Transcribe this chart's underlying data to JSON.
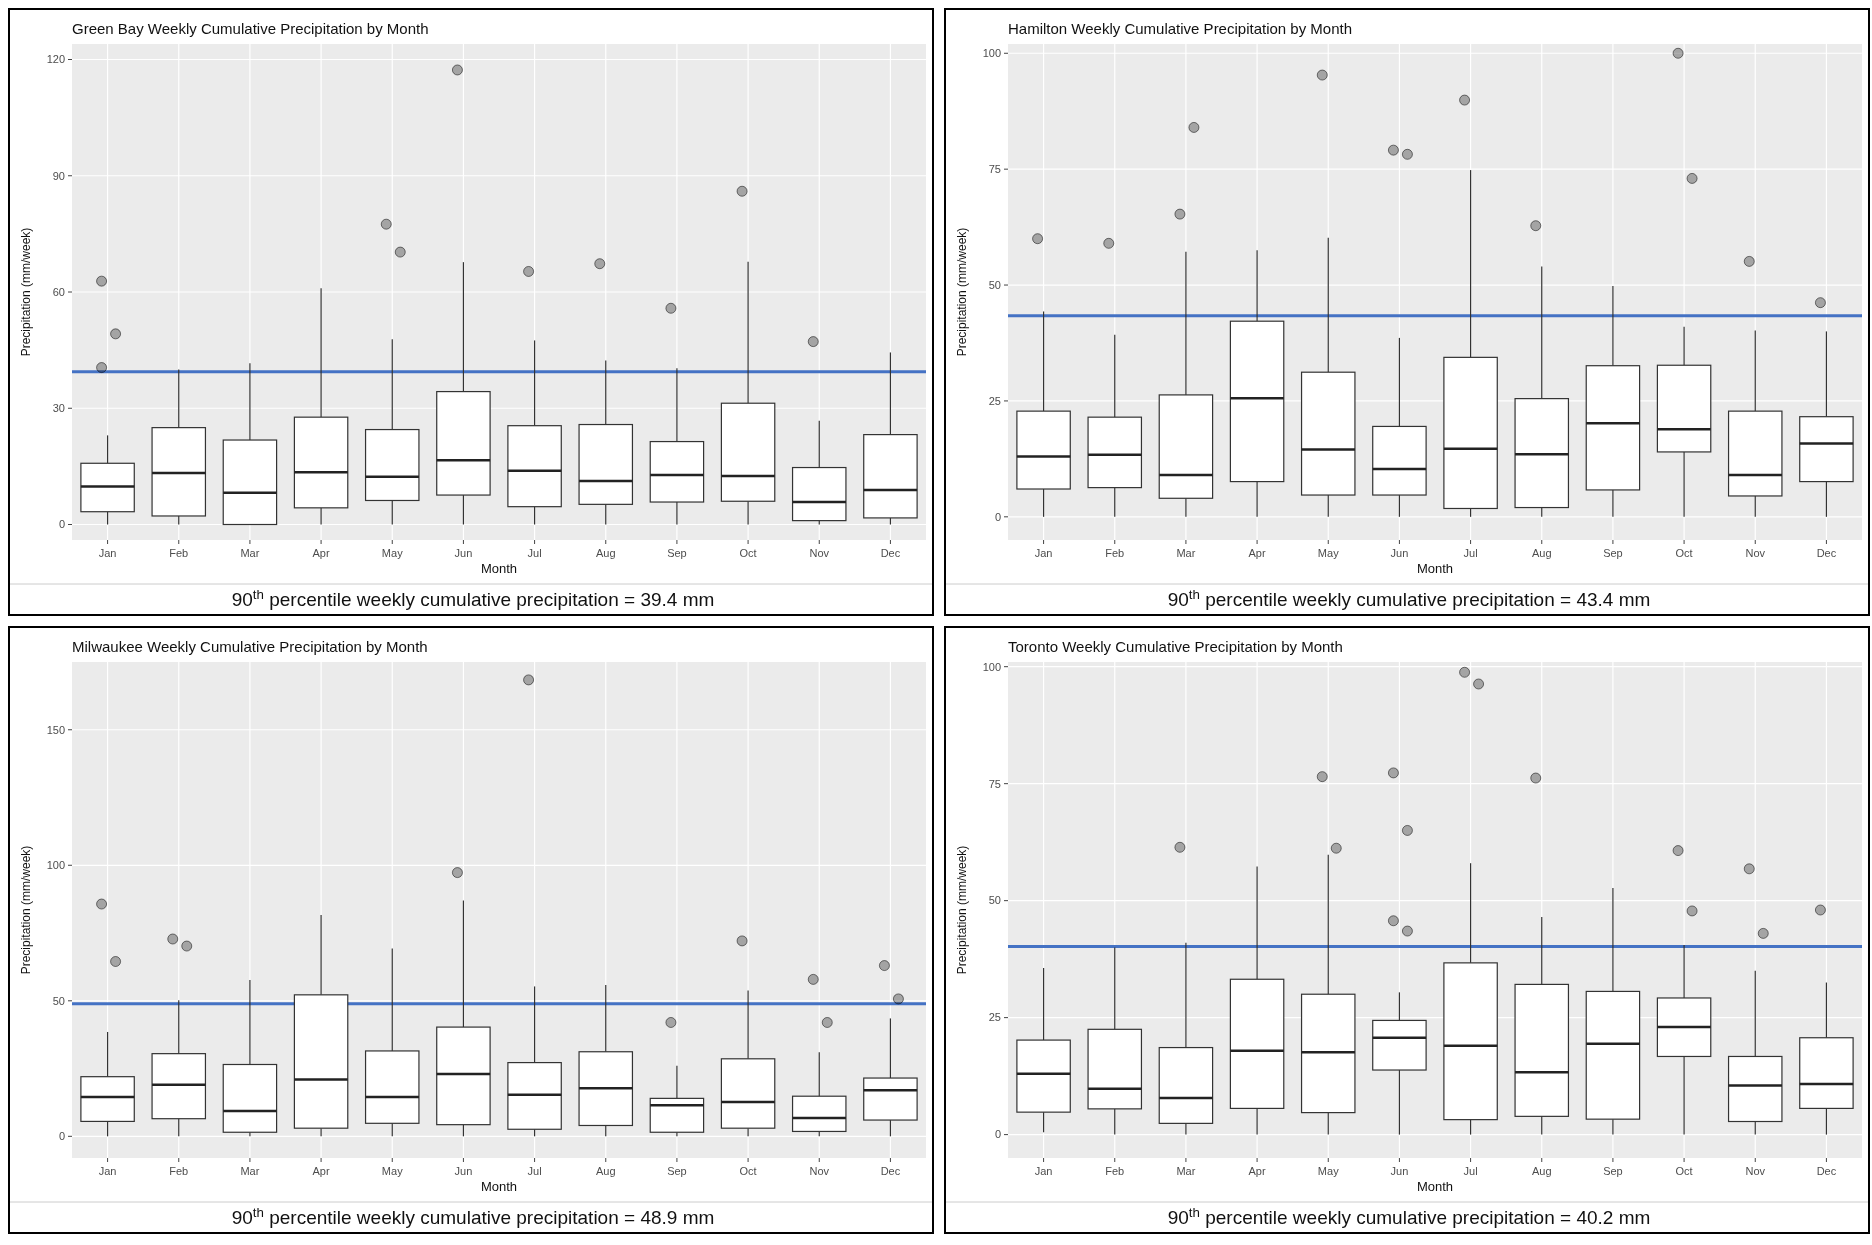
{
  "chart_data": [
    {
      "type": "box",
      "title": "Green Bay Weekly Cumulative Precipitation by Month",
      "xlabel": "Month",
      "ylabel": "Precipitation (mm/week)",
      "categories": [
        "Jan",
        "Feb",
        "Mar",
        "Apr",
        "May",
        "Jun",
        "Jul",
        "Aug",
        "Sep",
        "Oct",
        "Nov",
        "Dec"
      ],
      "ylim": [
        -4,
        124
      ],
      "yticks": [
        0,
        30,
        60,
        90,
        120
      ],
      "grid": true,
      "boxes": [
        {
          "low": 0,
          "q1": 3.3,
          "median": 9.8,
          "q3": 15.8,
          "high": 23,
          "outliers": [
            62.8,
            49.2,
            40.5
          ]
        },
        {
          "low": 0,
          "q1": 2.2,
          "median": 13.3,
          "q3": 25,
          "high": 40
        },
        {
          "low": 0,
          "q1": 0,
          "median": 8.2,
          "q3": 21.8,
          "high": 41.6
        },
        {
          "low": 0,
          "q1": 4.3,
          "median": 13.5,
          "q3": 27.7,
          "high": 61
        },
        {
          "low": 0,
          "q1": 6.2,
          "median": 12.3,
          "q3": 24.5,
          "high": 47.8,
          "outliers": [
            77.5,
            70.3
          ]
        },
        {
          "low": 0,
          "q1": 7.6,
          "median": 16.6,
          "q3": 34.3,
          "high": 67.7,
          "outliers": [
            117.3
          ]
        },
        {
          "low": 0,
          "q1": 4.6,
          "median": 13.9,
          "q3": 25.5,
          "high": 47.5,
          "outliers": [
            65.3
          ]
        },
        {
          "low": 0,
          "q1": 5.2,
          "median": 11.2,
          "q3": 25.8,
          "high": 42.3,
          "outliers": [
            67.3
          ]
        },
        {
          "low": 0,
          "q1": 5.8,
          "median": 12.8,
          "q3": 21.4,
          "high": 40.3,
          "outliers": [
            55.8
          ]
        },
        {
          "low": 0,
          "q1": 6,
          "median": 12.5,
          "q3": 31.3,
          "high": 67.8,
          "outliers": [
            86
          ]
        },
        {
          "low": 0,
          "q1": 1,
          "median": 5.8,
          "q3": 14.7,
          "high": 26.8,
          "outliers": [
            47.2
          ]
        },
        {
          "low": 0,
          "q1": 1.7,
          "median": 8.9,
          "q3": 23.2,
          "high": 44.4
        }
      ],
      "ref_lines": [
        {
          "axis": "y",
          "value": 39.4,
          "color": "#4472c4"
        }
      ],
      "annotations": [
        "90$^{th}$ percentile weekly cumulative precipitation = 39.4 mm"
      ]
    },
    {
      "type": "box",
      "title": "Hamilton Weekly Cumulative Precipitation by Month",
      "xlabel": "Month",
      "ylabel": "Precipitation (mm/week)",
      "categories": [
        "Jan",
        "Feb",
        "Mar",
        "Apr",
        "May",
        "Jun",
        "Jul",
        "Aug",
        "Sep",
        "Oct",
        "Nov",
        "Dec"
      ],
      "ylim": [
        -5,
        102
      ],
      "yticks": [
        0,
        25,
        50,
        75,
        100
      ],
      "grid": true,
      "boxes": [
        {
          "low": 0,
          "q1": 6,
          "median": 13,
          "q3": 22.8,
          "high": 44.3,
          "outliers": [
            60
          ]
        },
        {
          "low": 0,
          "q1": 6.3,
          "median": 13.4,
          "q3": 21.5,
          "high": 39.3,
          "outliers": [
            59
          ]
        },
        {
          "low": 0,
          "q1": 4,
          "median": 9,
          "q3": 26.3,
          "high": 57.2,
          "outliers": [
            65.3,
            84
          ]
        },
        {
          "low": 0,
          "q1": 7.6,
          "median": 25.6,
          "q3": 42.2,
          "high": 57.5
        },
        {
          "low": 0,
          "q1": 4.7,
          "median": 14.5,
          "q3": 31.2,
          "high": 60.2,
          "outliers": [
            95.3
          ]
        },
        {
          "low": 0,
          "q1": 4.7,
          "median": 10.3,
          "q3": 19.5,
          "high": 38.6,
          "outliers": [
            79.1,
            78.2
          ]
        },
        {
          "low": 0,
          "q1": 1.8,
          "median": 14.7,
          "q3": 34.4,
          "high": 74.8,
          "outliers": [
            89.9
          ]
        },
        {
          "low": 0,
          "q1": 2,
          "median": 13.5,
          "q3": 25.5,
          "high": 54,
          "outliers": [
            62.8
          ]
        },
        {
          "low": 0,
          "q1": 5.8,
          "median": 20.2,
          "q3": 32.6,
          "high": 49.8
        },
        {
          "low": 0,
          "q1": 14,
          "median": 18.9,
          "q3": 32.7,
          "high": 41,
          "outliers": [
            100,
            73
          ]
        },
        {
          "low": 0,
          "q1": 4.5,
          "median": 9,
          "q3": 22.8,
          "high": 40.2,
          "outliers": [
            55.1
          ]
        },
        {
          "low": 0,
          "q1": 7.6,
          "median": 15.8,
          "q3": 21.6,
          "high": 40,
          "outliers": [
            46.2
          ]
        }
      ],
      "ref_lines": [
        {
          "axis": "y",
          "value": 43.4,
          "color": "#4472c4"
        }
      ],
      "annotations": [
        "90$^{th}$ percentile weekly cumulative precipitation = 43.4 mm"
      ]
    },
    {
      "type": "box",
      "title": "Milwaukee Weekly Cumulative Precipitation by Month",
      "xlabel": "Month",
      "ylabel": "Precipitation (mm/week)",
      "categories": [
        "Jan",
        "Feb",
        "Mar",
        "Apr",
        "May",
        "Jun",
        "Jul",
        "Aug",
        "Sep",
        "Oct",
        "Nov",
        "Dec"
      ],
      "ylim": [
        -8,
        175
      ],
      "yticks": [
        0,
        50,
        100,
        150
      ],
      "grid": true,
      "boxes": [
        {
          "low": 0,
          "q1": 5.5,
          "median": 14.5,
          "q3": 22,
          "high": 38.5,
          "outliers": [
            85.7,
            64.5
          ]
        },
        {
          "low": 0,
          "q1": 6.5,
          "median": 19,
          "q3": 30.5,
          "high": 50.2,
          "outliers": [
            72.8,
            70.2
          ]
        },
        {
          "low": 0,
          "q1": 1.5,
          "median": 9.3,
          "q3": 26.5,
          "high": 57.7
        },
        {
          "low": 0,
          "q1": 3,
          "median": 21,
          "q3": 52.2,
          "high": 81.7
        },
        {
          "low": 0,
          "q1": 4.8,
          "median": 14.5,
          "q3": 31.5,
          "high": 69.3
        },
        {
          "low": 0,
          "q1": 4.3,
          "median": 23,
          "q3": 40.3,
          "high": 87,
          "outliers": [
            97.3
          ]
        },
        {
          "low": 0,
          "q1": 2.6,
          "median": 15.3,
          "q3": 27.2,
          "high": 55.3,
          "outliers": [
            168.4
          ]
        },
        {
          "low": 0,
          "q1": 4,
          "median": 17.7,
          "q3": 31.2,
          "high": 55.8
        },
        {
          "low": 0,
          "q1": 1.5,
          "median": 11.5,
          "q3": 14,
          "high": 26,
          "outliers": [
            42
          ]
        },
        {
          "low": 0,
          "q1": 3,
          "median": 12.7,
          "q3": 28.6,
          "high": 53.8,
          "outliers": [
            72.1
          ]
        },
        {
          "low": 0,
          "q1": 1.8,
          "median": 6.8,
          "q3": 14.8,
          "high": 31,
          "outliers": [
            57.9,
            42
          ]
        },
        {
          "low": 0,
          "q1": 6,
          "median": 17,
          "q3": 21.5,
          "high": 43.5,
          "outliers": [
            63,
            50.7
          ]
        }
      ],
      "ref_lines": [
        {
          "axis": "y",
          "value": 48.9,
          "color": "#4472c4"
        }
      ],
      "annotations": [
        "90$^{th}$ percentile weekly cumulative precipitation = 48.9 mm"
      ]
    },
    {
      "type": "box",
      "title": "Toronto Weekly Cumulative Precipitation by Month",
      "xlabel": "Month",
      "ylabel": "Precipitation (mm/week)",
      "categories": [
        "Jan",
        "Feb",
        "Mar",
        "Apr",
        "May",
        "Jun",
        "Jul",
        "Aug",
        "Sep",
        "Oct",
        "Nov",
        "Dec"
      ],
      "ylim": [
        -5,
        101
      ],
      "yticks": [
        0,
        25,
        50,
        75,
        100
      ],
      "grid": true,
      "boxes": [
        {
          "low": 0.5,
          "q1": 4.8,
          "median": 13,
          "q3": 20.2,
          "high": 35.6
        },
        {
          "low": 0,
          "q1": 5.5,
          "median": 9.8,
          "q3": 22.5,
          "high": 40
        },
        {
          "low": 0,
          "q1": 2.4,
          "median": 7.8,
          "q3": 18.6,
          "high": 41,
          "outliers": [
            61.4
          ]
        },
        {
          "low": 0,
          "q1": 5.6,
          "median": 17.9,
          "q3": 33.2,
          "high": 57.3
        },
        {
          "low": 0,
          "q1": 4.7,
          "median": 17.6,
          "q3": 30,
          "high": 59.8,
          "outliers": [
            76.5,
            61.2
          ]
        },
        {
          "low": 0,
          "q1": 13.8,
          "median": 20.7,
          "q3": 24.4,
          "high": 30.4,
          "outliers": [
            77.3,
            65,
            45.7,
            43.5
          ]
        },
        {
          "low": 0,
          "q1": 3.2,
          "median": 19,
          "q3": 36.7,
          "high": 58,
          "outliers": [
            98.8,
            96.3
          ]
        },
        {
          "low": 0,
          "q1": 3.9,
          "median": 13.3,
          "q3": 32.1,
          "high": 46.5,
          "outliers": [
            76.2
          ]
        },
        {
          "low": 0,
          "q1": 3.3,
          "median": 19.4,
          "q3": 30.6,
          "high": 52.7
        },
        {
          "low": 0,
          "q1": 16.7,
          "median": 23,
          "q3": 29.2,
          "high": 40.5,
          "outliers": [
            60.7,
            47.8
          ]
        },
        {
          "low": 0,
          "q1": 2.8,
          "median": 10.5,
          "q3": 16.7,
          "high": 35,
          "outliers": [
            56.8,
            43
          ]
        },
        {
          "low": 0,
          "q1": 5.6,
          "median": 10.8,
          "q3": 20.7,
          "high": 32.5,
          "outliers": [
            48
          ]
        }
      ],
      "ref_lines": [
        {
          "axis": "y",
          "value": 40.2,
          "color": "#4472c4"
        }
      ],
      "annotations": [
        "90$^{th}$ percentile weekly cumulative precipitation = 40.2 mm"
      ]
    }
  ]
}
